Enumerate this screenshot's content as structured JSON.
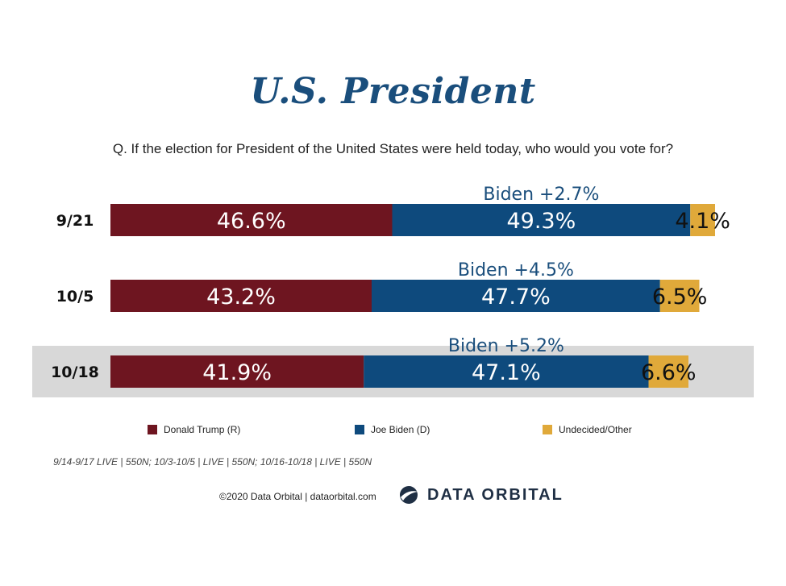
{
  "title": "U.S. President",
  "question": "Q. If the election for President of the United States were held today, who would you vote for?",
  "colors": {
    "trump": "#6e1520",
    "biden": "#0e4a7d",
    "undecided": "#e0a93a",
    "highlight": "#d8d8d8",
    "margin_text": "#1a4e7c"
  },
  "chart_data": {
    "type": "bar",
    "orientation": "horizontal",
    "stacked": true,
    "categories": [
      "9/21",
      "10/5",
      "10/18"
    ],
    "series": [
      {
        "name": "Donald Trump (R)",
        "values": [
          46.6,
          43.2,
          41.9
        ],
        "labels": [
          "46.6%",
          "43.2%",
          "41.9%"
        ]
      },
      {
        "name": "Joe Biden (D)",
        "values": [
          49.3,
          47.7,
          47.1
        ],
        "labels": [
          "49.3%",
          "47.7%",
          "47.1%"
        ]
      },
      {
        "name": "Undecided/Other",
        "values": [
          4.1,
          6.5,
          6.6
        ],
        "labels": [
          "4.1%",
          "6.5%",
          "6.6%"
        ]
      }
    ],
    "margins": [
      "Biden +2.7%",
      "Biden +4.5%",
      "Biden +5.2%"
    ],
    "highlighted_category": "10/18",
    "legend_position": "bottom"
  },
  "source_note": "9/14-9/17 LIVE | 550N; 10/3-10/5 | LIVE | 550N; 10/16-10/18 | LIVE | 550N",
  "copyright": "©2020 Data Orbital | dataorbital.com",
  "brand": {
    "name": "DATA ORBITAL",
    "icon": "orbital-logo-icon"
  }
}
